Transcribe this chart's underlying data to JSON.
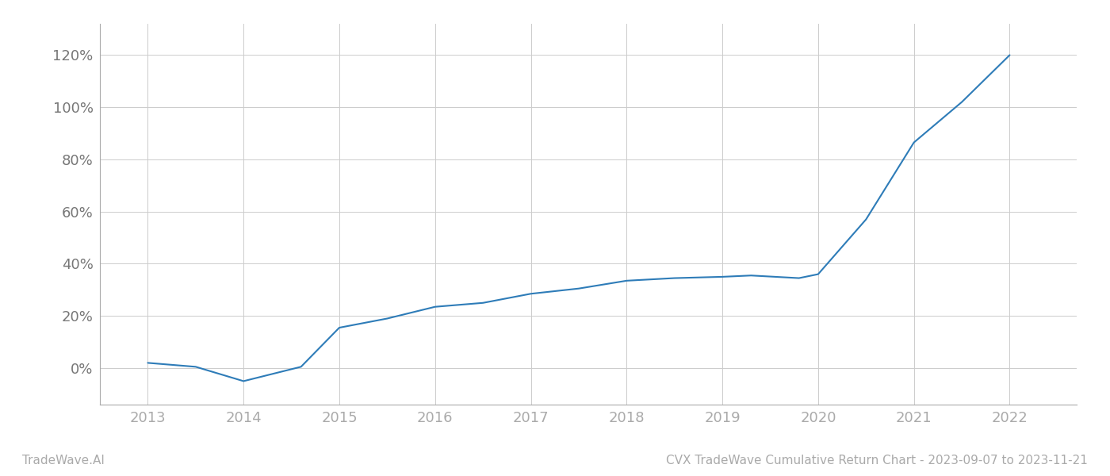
{
  "title": "CVX TradeWave Cumulative Return Chart - 2023-09-07 to 2023-11-21",
  "left_label": "TradeWave.AI",
  "line_color": "#2e7cb8",
  "background_color": "#ffffff",
  "grid_color": "#cccccc",
  "x_values": [
    2013.0,
    2013.5,
    2014.0,
    2014.6,
    2015.0,
    2015.5,
    2016.0,
    2016.5,
    2017.0,
    2017.5,
    2018.0,
    2018.5,
    2019.0,
    2019.3,
    2019.8,
    2020.0,
    2020.5,
    2021.0,
    2021.5,
    2022.0
  ],
  "y_values": [
    0.02,
    0.005,
    -0.05,
    0.005,
    0.155,
    0.19,
    0.235,
    0.25,
    0.285,
    0.305,
    0.335,
    0.345,
    0.35,
    0.355,
    0.345,
    0.36,
    0.57,
    0.865,
    1.02,
    1.2
  ],
  "xlim": [
    2012.5,
    2022.7
  ],
  "ylim": [
    -0.14,
    1.32
  ],
  "yticks": [
    0.0,
    0.2,
    0.4,
    0.6,
    0.8,
    1.0,
    1.2
  ],
  "ytick_labels": [
    "0%",
    "20%",
    "40%",
    "60%",
    "80%",
    "100%",
    "120%"
  ],
  "xticks": [
    2013,
    2014,
    2015,
    2016,
    2017,
    2018,
    2019,
    2020,
    2021,
    2022
  ],
  "line_width": 1.5,
  "figsize": [
    14.0,
    6.0
  ],
  "dpi": 100,
  "left_spine_color": "#aaaaaa",
  "bottom_spine_color": "#aaaaaa",
  "tick_label_color_y": "#777777",
  "tick_label_color_x": "#aaaaaa",
  "footer_color": "#aaaaaa",
  "footer_fontsize": 11
}
